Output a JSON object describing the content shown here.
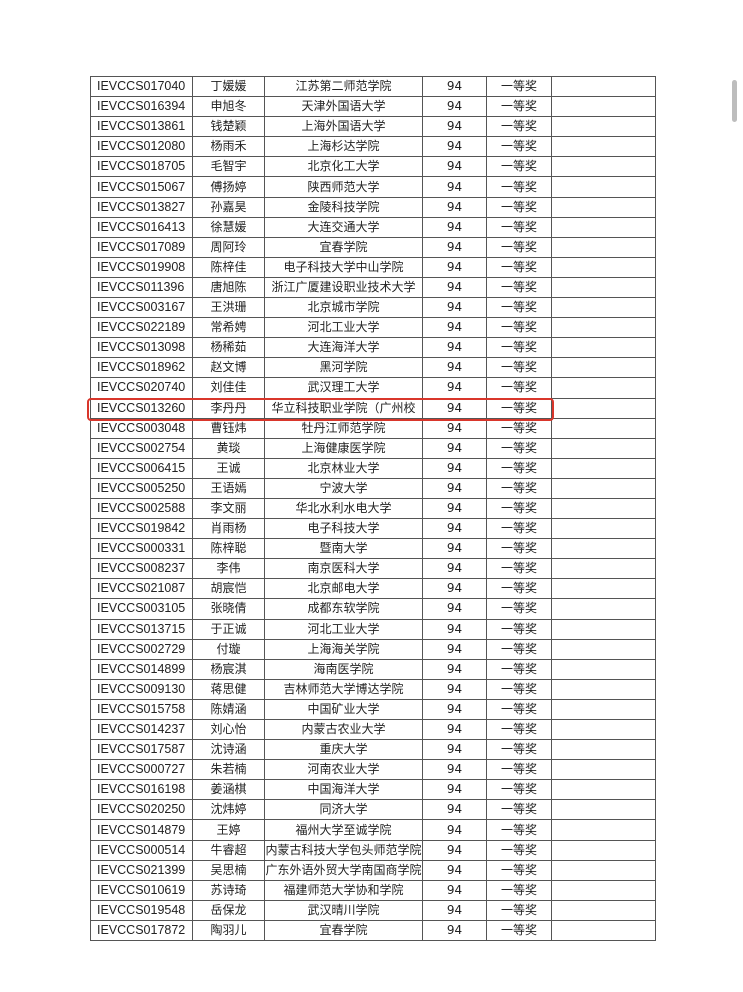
{
  "colors": {
    "highlight": "#d9362b",
    "border": "#555555"
  },
  "highlighted_row_id": "IEVCCS013260",
  "rows": [
    {
      "id": "IEVCCS017040",
      "name": "丁媛媛",
      "school": "江苏第二师范学院",
      "score": "94",
      "award": "一等奖"
    },
    {
      "id": "IEVCCS016394",
      "name": "申旭冬",
      "school": "天津外国语大学",
      "score": "94",
      "award": "一等奖"
    },
    {
      "id": "IEVCCS013861",
      "name": "钱楚颖",
      "school": "上海外国语大学",
      "score": "94",
      "award": "一等奖"
    },
    {
      "id": "IEVCCS012080",
      "name": "杨雨禾",
      "school": "上海杉达学院",
      "score": "94",
      "award": "一等奖"
    },
    {
      "id": "IEVCCS018705",
      "name": "毛智宇",
      "school": "北京化工大学",
      "score": "94",
      "award": "一等奖"
    },
    {
      "id": "IEVCCS015067",
      "name": "傅扬婷",
      "school": "陕西师范大学",
      "score": "94",
      "award": "一等奖"
    },
    {
      "id": "IEVCCS013827",
      "name": "孙嘉昊",
      "school": "金陵科技学院",
      "score": "94",
      "award": "一等奖"
    },
    {
      "id": "IEVCCS016413",
      "name": "徐慧媛",
      "school": "大连交通大学",
      "score": "94",
      "award": "一等奖"
    },
    {
      "id": "IEVCCS017089",
      "name": "周阿玲",
      "school": "宜春学院",
      "score": "94",
      "award": "一等奖"
    },
    {
      "id": "IEVCCS019908",
      "name": "陈梓佳",
      "school": "电子科技大学中山学院",
      "score": "94",
      "award": "一等奖"
    },
    {
      "id": "IEVCCS011396",
      "name": "唐旭陈",
      "school": "浙江广厦建设职业技术大学",
      "score": "94",
      "award": "一等奖"
    },
    {
      "id": "IEVCCS003167",
      "name": "王洪珊",
      "school": "北京城市学院",
      "score": "94",
      "award": "一等奖"
    },
    {
      "id": "IEVCCS022189",
      "name": "常希娉",
      "school": "河北工业大学",
      "score": "94",
      "award": "一等奖"
    },
    {
      "id": "IEVCCS013098",
      "name": "杨稀茹",
      "school": "大连海洋大学",
      "score": "94",
      "award": "一等奖"
    },
    {
      "id": "IEVCCS018962",
      "name": "赵文博",
      "school": "黑河学院",
      "score": "94",
      "award": "一等奖"
    },
    {
      "id": "IEVCCS020740",
      "name": "刘佳佳",
      "school": "武汉理工大学",
      "score": "94",
      "award": "一等奖"
    },
    {
      "id": "IEVCCS013260",
      "name": "李丹丹",
      "school": "华立科技职业学院（广州校",
      "score": "94",
      "award": "一等奖"
    },
    {
      "id": "IEVCCS003048",
      "name": "曹钰炜",
      "school": "牡丹江师范学院",
      "score": "94",
      "award": "一等奖"
    },
    {
      "id": "IEVCCS002754",
      "name": "黄琰",
      "school": "上海健康医学院",
      "score": "94",
      "award": "一等奖"
    },
    {
      "id": "IEVCCS006415",
      "name": "王诚",
      "school": "北京林业大学",
      "score": "94",
      "award": "一等奖"
    },
    {
      "id": "IEVCCS005250",
      "name": "王语嫣",
      "school": "宁波大学",
      "score": "94",
      "award": "一等奖"
    },
    {
      "id": "IEVCCS002588",
      "name": "李文丽",
      "school": "华北水利水电大学",
      "score": "94",
      "award": "一等奖"
    },
    {
      "id": "IEVCCS019842",
      "name": "肖雨杨",
      "school": "电子科技大学",
      "score": "94",
      "award": "一等奖"
    },
    {
      "id": "IEVCCS000331",
      "name": "陈梓聪",
      "school": "暨南大学",
      "score": "94",
      "award": "一等奖"
    },
    {
      "id": "IEVCCS008237",
      "name": "李伟",
      "school": "南京医科大学",
      "score": "94",
      "award": "一等奖"
    },
    {
      "id": "IEVCCS021087",
      "name": "胡宸恺",
      "school": "北京邮电大学",
      "score": "94",
      "award": "一等奖"
    },
    {
      "id": "IEVCCS003105",
      "name": "张晓倩",
      "school": "成都东软学院",
      "score": "94",
      "award": "一等奖"
    },
    {
      "id": "IEVCCS013715",
      "name": "于正诚",
      "school": "河北工业大学",
      "score": "94",
      "award": "一等奖"
    },
    {
      "id": "IEVCCS002729",
      "name": "付璇",
      "school": "上海海关学院",
      "score": "94",
      "award": "一等奖"
    },
    {
      "id": "IEVCCS014899",
      "name": "杨宸淇",
      "school": "海南医学院",
      "score": "94",
      "award": "一等奖"
    },
    {
      "id": "IEVCCS009130",
      "name": "蒋思健",
      "school": "吉林师范大学博达学院",
      "score": "94",
      "award": "一等奖"
    },
    {
      "id": "IEVCCS015758",
      "name": "陈婧涵",
      "school": "中国矿业大学",
      "score": "94",
      "award": "一等奖"
    },
    {
      "id": "IEVCCS014237",
      "name": "刘心怡",
      "school": "内蒙古农业大学",
      "score": "94",
      "award": "一等奖"
    },
    {
      "id": "IEVCCS017587",
      "name": "沈诗涵",
      "school": "重庆大学",
      "score": "94",
      "award": "一等奖"
    },
    {
      "id": "IEVCCS000727",
      "name": "朱若楠",
      "school": "河南农业大学",
      "score": "94",
      "award": "一等奖"
    },
    {
      "id": "IEVCCS016198",
      "name": "姜涵棋",
      "school": "中国海洋大学",
      "score": "94",
      "award": "一等奖"
    },
    {
      "id": "IEVCCS020250",
      "name": "沈炜婷",
      "school": "同济大学",
      "score": "94",
      "award": "一等奖"
    },
    {
      "id": "IEVCCS014879",
      "name": "王婷",
      "school": "福州大学至诚学院",
      "score": "94",
      "award": "一等奖"
    },
    {
      "id": "IEVCCS000514",
      "name": "牛睿超",
      "school": "内蒙古科技大学包头师范学院",
      "score": "94",
      "award": "一等奖"
    },
    {
      "id": "IEVCCS021399",
      "name": "吴思楠",
      "school": "广东外语外贸大学南国商学院",
      "score": "94",
      "award": "一等奖"
    },
    {
      "id": "IEVCCS010619",
      "name": "苏诗琦",
      "school": "福建师范大学协和学院",
      "score": "94",
      "award": "一等奖"
    },
    {
      "id": "IEVCCS019548",
      "name": "岳保龙",
      "school": "武汉晴川学院",
      "score": "94",
      "award": "一等奖"
    },
    {
      "id": "IEVCCS017872",
      "name": "陶羽儿",
      "school": "宜春学院",
      "score": "94",
      "award": "一等奖"
    }
  ]
}
